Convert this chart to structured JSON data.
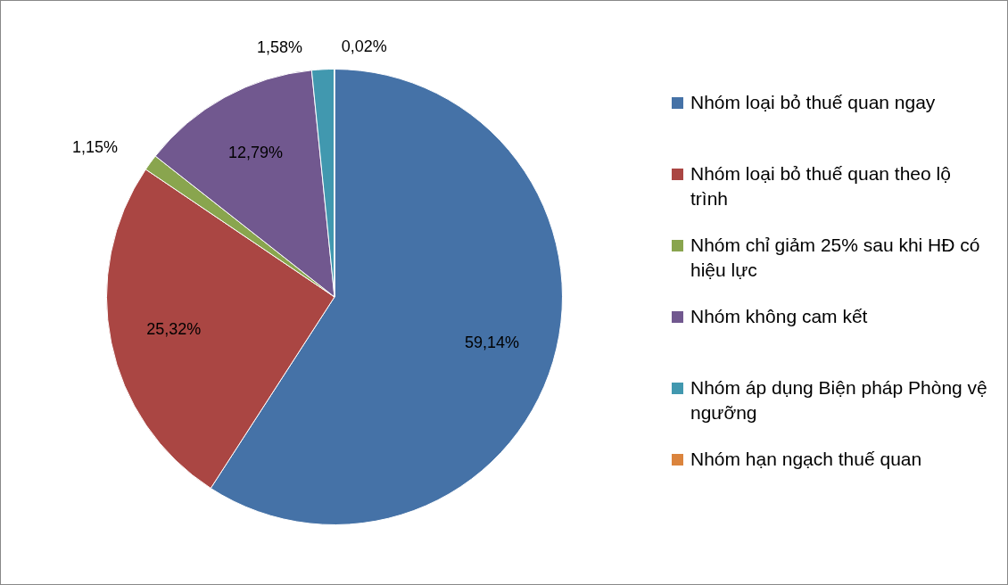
{
  "chart_data": {
    "type": "pie",
    "categories": [
      "Nhóm loại bỏ thuế quan ngay",
      "Nhóm loại bỏ thuế quan theo lộ trình",
      "Nhóm chỉ giảm 25% sau khi HĐ có hiệu lực",
      "Nhóm không cam kết",
      "Nhóm áp dụng Biện pháp Phòng vệ ngưỡng",
      "Nhóm hạn ngạch thuế quan"
    ],
    "values": [
      59.14,
      25.32,
      1.15,
      12.79,
      1.58,
      0.02
    ],
    "colors": [
      "#4572a7",
      "#aa4643",
      "#89a54e",
      "#71588f",
      "#4198af",
      "#db843d"
    ],
    "value_labels": [
      "59,14%",
      "25,32%",
      "1,15%",
      "12,79%",
      "1,58%",
      "0,02%"
    ],
    "legend": "right"
  }
}
